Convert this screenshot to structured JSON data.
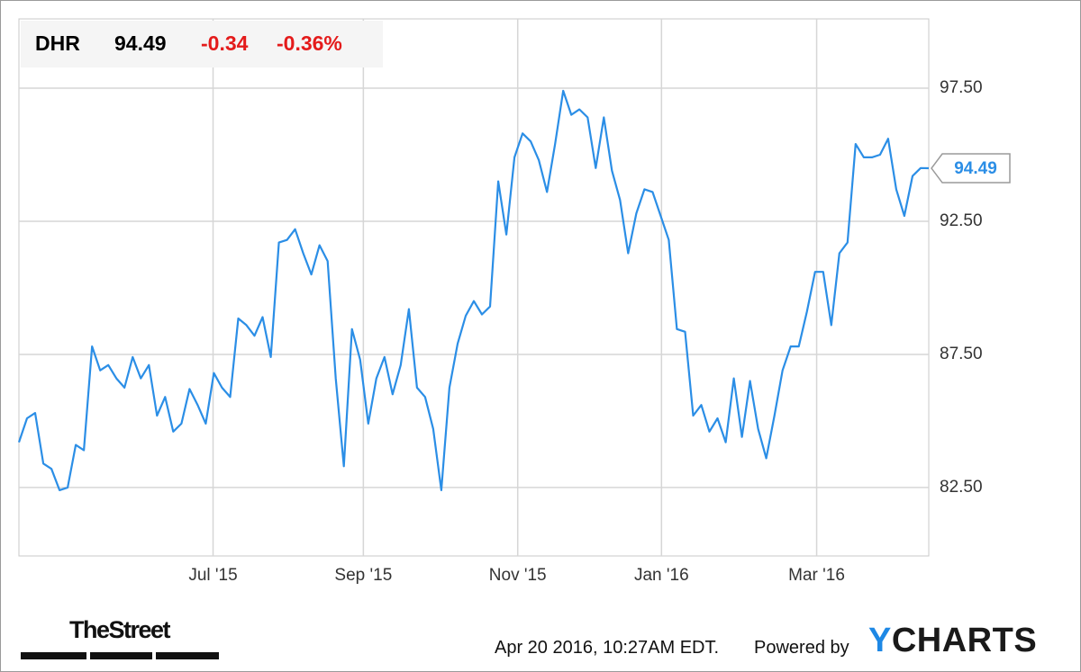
{
  "header": {
    "ticker": "DHR",
    "price": "94.49",
    "change": "-0.34",
    "change_percent": "-0.36%"
  },
  "chart_data": {
    "type": "line",
    "series": [
      {
        "name": "DHR",
        "color": "#2b8ee6",
        "values": [
          84.2,
          85.1,
          85.3,
          83.4,
          83.2,
          82.4,
          82.5,
          84.1,
          83.9,
          87.8,
          86.9,
          87.1,
          86.6,
          86.25,
          87.4,
          86.6,
          87.1,
          85.2,
          85.9,
          84.6,
          84.9,
          86.2,
          85.6,
          84.9,
          86.8,
          86.25,
          85.9,
          88.85,
          88.6,
          88.2,
          88.9,
          87.4,
          91.7,
          91.8,
          92.2,
          91.3,
          90.5,
          91.6,
          91.0,
          86.6,
          83.3,
          88.45,
          87.3,
          84.9,
          86.6,
          87.4,
          86.0,
          87.1,
          89.2,
          86.25,
          85.9,
          84.7,
          82.4,
          86.25,
          87.9,
          88.95,
          89.5,
          89.0,
          89.3,
          94.0,
          92.0,
          94.9,
          95.8,
          95.5,
          94.8,
          93.6,
          95.4,
          97.4,
          96.5,
          96.7,
          96.4,
          94.5,
          96.4,
          94.4,
          93.3,
          91.3,
          92.8,
          93.7,
          93.6,
          92.7,
          91.8,
          88.45,
          88.35,
          85.2,
          85.6,
          84.6,
          85.1,
          84.2,
          86.6,
          84.4,
          86.5,
          84.7,
          83.6,
          85.2,
          86.9,
          87.8,
          87.8,
          89.1,
          90.6,
          90.6,
          88.6,
          91.3,
          91.7,
          95.4,
          94.9,
          94.9,
          95.0,
          95.6,
          93.7,
          92.7,
          94.2,
          94.5,
          94.49
        ]
      }
    ],
    "xlim": [
      0,
      112
    ],
    "xticks": [
      {
        "value": 23.9,
        "label": "Jul '15"
      },
      {
        "value": 42.4,
        "label": "Sep '15"
      },
      {
        "value": 61.4,
        "label": "Nov '15"
      },
      {
        "value": 79.1,
        "label": "Jan '16"
      },
      {
        "value": 98.2,
        "label": "Mar '16"
      }
    ],
    "ylim": [
      79.93,
      100.1
    ],
    "yticks": [
      {
        "value": 82.5,
        "label": "82.50"
      },
      {
        "value": 87.5,
        "label": "87.50"
      },
      {
        "value": 92.5,
        "label": "92.50"
      },
      {
        "value": 97.5,
        "label": "97.50"
      }
    ],
    "grid": true
  },
  "footer": {
    "source": "TheStreet",
    "timestamp": "Apr 20 2016, 10:27AM EDT.",
    "powered": "Powered by",
    "logo": "YCHARTS"
  }
}
